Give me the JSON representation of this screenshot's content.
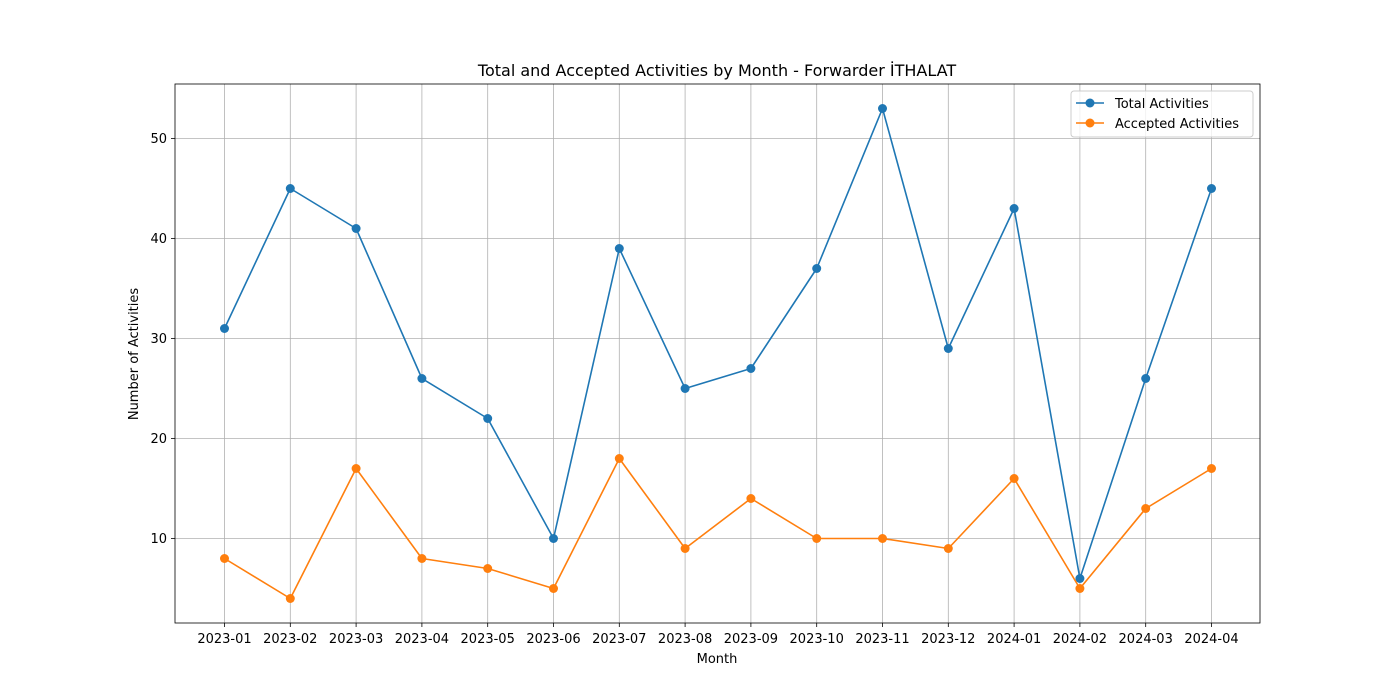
{
  "chart_data": {
    "type": "line",
    "title": "Total and Accepted Activities by Month - Forwarder İTHALAT",
    "xlabel": "Month",
    "ylabel": "Number of Activities",
    "categories": [
      "2023-01",
      "2023-02",
      "2023-03",
      "2023-04",
      "2023-05",
      "2023-06",
      "2023-07",
      "2023-08",
      "2023-09",
      "2023-10",
      "2023-11",
      "2023-12",
      "2024-01",
      "2024-02",
      "2024-03",
      "2024-04"
    ],
    "series": [
      {
        "name": "Total Activities",
        "color": "#1f77b4",
        "values": [
          31,
          45,
          41,
          26,
          22,
          10,
          39,
          25,
          27,
          37,
          53,
          29,
          43,
          6,
          26,
          45
        ]
      },
      {
        "name": "Accepted Activities",
        "color": "#ff7f0e",
        "values": [
          8,
          4,
          17,
          8,
          7,
          5,
          18,
          9,
          14,
          10,
          10,
          9,
          16,
          5,
          13,
          17
        ]
      }
    ],
    "ylim": [
      1.55,
      55.45
    ],
    "yticks": [
      10,
      20,
      30,
      40,
      50
    ],
    "grid": true,
    "legend": "top-right"
  }
}
